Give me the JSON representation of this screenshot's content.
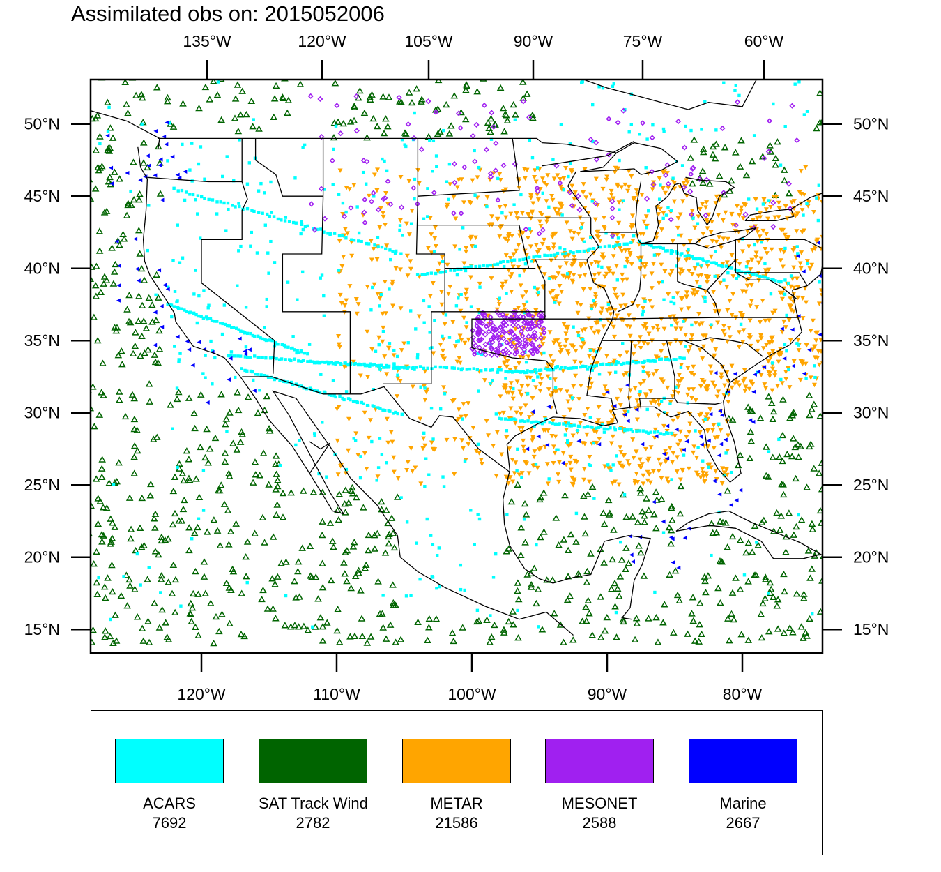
{
  "title": "Assimilated obs on: 2015052006",
  "map": {
    "top_lon_labels": [
      "135°W",
      "120°W",
      "105°W",
      "90°W",
      "75°W",
      "60°W"
    ],
    "bottom_lon_labels": [
      "120°W",
      "110°W",
      "100°W",
      "90°W",
      "80°W"
    ],
    "lat_labels": [
      "50°N",
      "45°N",
      "40°N",
      "35°N",
      "30°N",
      "25°N",
      "20°N",
      "15°N"
    ],
    "lat_values": [
      50,
      45,
      40,
      35,
      30,
      25,
      20,
      15
    ],
    "bottom_lon_values": [
      -120,
      -110,
      -100,
      -90,
      -80
    ],
    "top_lon_values": [
      -135,
      -120,
      -105,
      -90,
      -75,
      -60
    ],
    "lat_range": [
      14,
      53.5
    ],
    "lon_range": [
      -128.6,
      -74
    ]
  },
  "legend": [
    {
      "name": "ACARS",
      "count": "7692",
      "color": "#00ffff",
      "symbol": "square"
    },
    {
      "name": "SAT Track Wind",
      "count": "2782",
      "color": "#006400",
      "symbol": "triangle-up"
    },
    {
      "name": "METAR",
      "count": "21586",
      "color": "#ffa500",
      "symbol": "triangle-down"
    },
    {
      "name": "MESONET",
      "count": "2588",
      "color": "#a020f0",
      "symbol": "diamond"
    },
    {
      "name": "Marine",
      "count": "2667",
      "color": "#0000ff",
      "symbol": "triangle-left"
    }
  ]
}
